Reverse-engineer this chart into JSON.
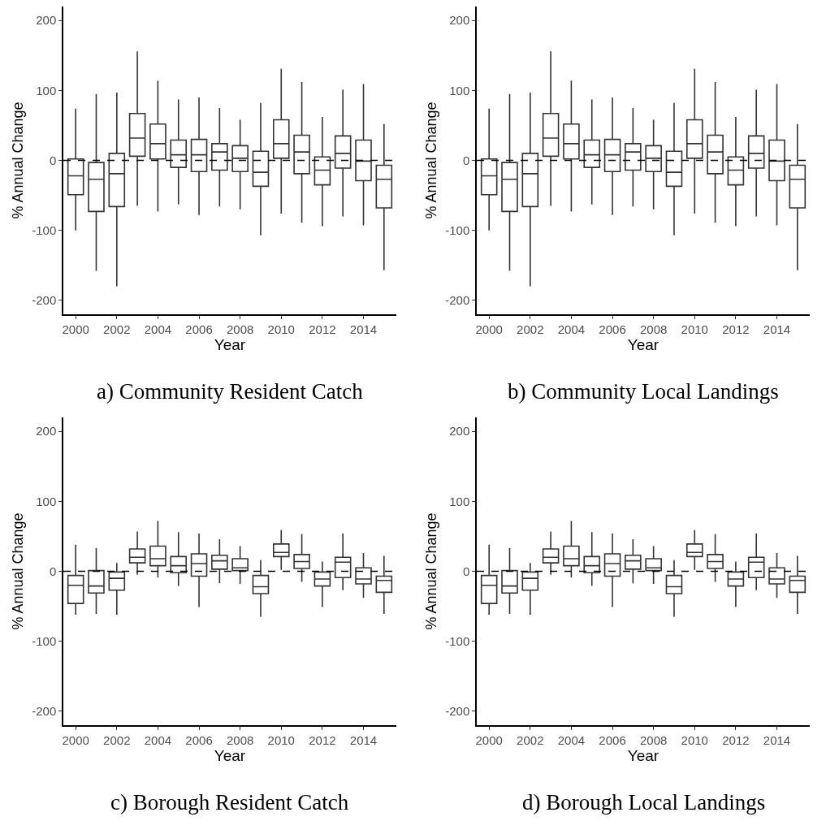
{
  "chart_data": [
    {
      "type": "box",
      "title": "a) Community Resident Catch",
      "xlabel": "Year",
      "ylabel": "% Annual Change",
      "color": "#333333",
      "x": [
        2000,
        2001,
        2002,
        2003,
        2004,
        2005,
        2006,
        2007,
        2008,
        2009,
        2010,
        2011,
        2012,
        2013,
        2014,
        2015
      ],
      "boxes": [
        {
          "low": -100,
          "q1": -49,
          "median": -22,
          "q3": 2,
          "high": 74
        },
        {
          "low": -158,
          "q1": -73,
          "median": -27,
          "q3": -3,
          "high": 95
        },
        {
          "low": -180,
          "q1": -66,
          "median": -19,
          "q3": 10,
          "high": 97
        },
        {
          "low": -65,
          "q1": 6,
          "median": 32,
          "q3": 67,
          "high": 156
        },
        {
          "low": -73,
          "q1": 2,
          "median": 24,
          "q3": 52,
          "high": 114
        },
        {
          "low": -63,
          "q1": -10,
          "median": 8,
          "q3": 29,
          "high": 87
        },
        {
          "low": -78,
          "q1": -16,
          "median": 8,
          "q3": 30,
          "high": 90
        },
        {
          "low": -66,
          "q1": -14,
          "median": 12,
          "q3": 24,
          "high": 75
        },
        {
          "low": -70,
          "q1": -16,
          "median": 3,
          "q3": 21,
          "high": 58
        },
        {
          "low": -107,
          "q1": -37,
          "median": -17,
          "q3": 13,
          "high": 82
        },
        {
          "low": -76,
          "q1": 3,
          "median": 24,
          "q3": 58,
          "high": 131
        },
        {
          "low": -89,
          "q1": -19,
          "median": 12,
          "q3": 36,
          "high": 112
        },
        {
          "low": -94,
          "q1": -35,
          "median": -14,
          "q3": 5,
          "high": 62
        },
        {
          "low": -80,
          "q1": -11,
          "median": 10,
          "q3": 35,
          "high": 101
        },
        {
          "low": -93,
          "q1": -29,
          "median": -1,
          "q3": 29,
          "high": 109
        },
        {
          "low": -157,
          "q1": -68,
          "median": -27,
          "q3": -7,
          "high": 52
        }
      ],
      "xlim": [
        1999.4,
        2015.6
      ],
      "xticks": [
        2000,
        2002,
        2004,
        2006,
        2008,
        2010,
        2012,
        2014
      ],
      "ylim": [
        -220,
        220
      ],
      "yticks": [
        -200,
        -100,
        0,
        100,
        200
      ],
      "ref_lines": [
        {
          "axis": "y",
          "value": 0,
          "line_style": "dashed",
          "color": "#000000"
        }
      ],
      "grid": false
    },
    {
      "type": "box",
      "title": "b) Community Local Landings",
      "xlabel": "Year",
      "ylabel": "% Annual Change",
      "color": "#333333",
      "x": [
        2000,
        2001,
        2002,
        2003,
        2004,
        2005,
        2006,
        2007,
        2008,
        2009,
        2010,
        2011,
        2012,
        2013,
        2014,
        2015
      ],
      "boxes": [
        {
          "low": -100,
          "q1": -49,
          "median": -22,
          "q3": 2,
          "high": 74
        },
        {
          "low": -158,
          "q1": -73,
          "median": -27,
          "q3": -3,
          "high": 95
        },
        {
          "low": -180,
          "q1": -66,
          "median": -19,
          "q3": 10,
          "high": 97
        },
        {
          "low": -65,
          "q1": 6,
          "median": 32,
          "q3": 67,
          "high": 156
        },
        {
          "low": -73,
          "q1": 2,
          "median": 24,
          "q3": 52,
          "high": 114
        },
        {
          "low": -63,
          "q1": -10,
          "median": 8,
          "q3": 29,
          "high": 87
        },
        {
          "low": -78,
          "q1": -16,
          "median": 8,
          "q3": 30,
          "high": 90
        },
        {
          "low": -66,
          "q1": -14,
          "median": 12,
          "q3": 24,
          "high": 75
        },
        {
          "low": -70,
          "q1": -16,
          "median": 3,
          "q3": 21,
          "high": 58
        },
        {
          "low": -107,
          "q1": -37,
          "median": -17,
          "q3": 13,
          "high": 82
        },
        {
          "low": -76,
          "q1": 3,
          "median": 24,
          "q3": 58,
          "high": 131
        },
        {
          "low": -89,
          "q1": -19,
          "median": 12,
          "q3": 36,
          "high": 112
        },
        {
          "low": -94,
          "q1": -35,
          "median": -14,
          "q3": 5,
          "high": 62
        },
        {
          "low": -80,
          "q1": -11,
          "median": 10,
          "q3": 35,
          "high": 101
        },
        {
          "low": -93,
          "q1": -29,
          "median": -1,
          "q3": 29,
          "high": 109
        },
        {
          "low": -157,
          "q1": -68,
          "median": -27,
          "q3": -7,
          "high": 52
        }
      ],
      "xlim": [
        1999.4,
        2015.6
      ],
      "xticks": [
        2000,
        2002,
        2004,
        2006,
        2008,
        2010,
        2012,
        2014
      ],
      "ylim": [
        -220,
        220
      ],
      "yticks": [
        -200,
        -100,
        0,
        100,
        200
      ],
      "ref_lines": [
        {
          "axis": "y",
          "value": 0,
          "line_style": "dashed",
          "color": "#000000"
        }
      ],
      "grid": false
    },
    {
      "type": "box",
      "title": "c) Borough Resident Catch",
      "xlabel": "Year",
      "ylabel": "% Annual Change",
      "color": "#333333",
      "x": [
        2000,
        2001,
        2002,
        2003,
        2004,
        2005,
        2006,
        2007,
        2008,
        2009,
        2010,
        2011,
        2012,
        2013,
        2014,
        2015
      ],
      "boxes": [
        {
          "low": -62,
          "q1": -46,
          "median": -20,
          "q3": -6,
          "high": 38
        },
        {
          "low": -61,
          "q1": -31,
          "median": -21,
          "q3": 1,
          "high": 33
        },
        {
          "low": -62,
          "q1": -27,
          "median": -10,
          "q3": -1,
          "high": 12
        },
        {
          "low": -5,
          "q1": 12,
          "median": 20,
          "q3": 32,
          "high": 57
        },
        {
          "low": -9,
          "q1": 8,
          "median": 18,
          "q3": 36,
          "high": 72
        },
        {
          "low": -21,
          "q1": -2,
          "median": 8,
          "q3": 21,
          "high": 56
        },
        {
          "low": -51,
          "q1": -7,
          "median": 11,
          "q3": 25,
          "high": 54
        },
        {
          "low": -17,
          "q1": 3,
          "median": 15,
          "q3": 23,
          "high": 46
        },
        {
          "low": -18,
          "q1": 1,
          "median": 5,
          "q3": 18,
          "high": 36
        },
        {
          "low": -65,
          "q1": -32,
          "median": -22,
          "q3": -6,
          "high": 16
        },
        {
          "low": 2,
          "q1": 21,
          "median": 27,
          "q3": 39,
          "high": 59
        },
        {
          "low": -15,
          "q1": 4,
          "median": 14,
          "q3": 24,
          "high": 53
        },
        {
          "low": -51,
          "q1": -21,
          "median": -11,
          "q3": -1,
          "high": 14
        },
        {
          "low": -27,
          "q1": -9,
          "median": 13,
          "q3": 20,
          "high": 54
        },
        {
          "low": -38,
          "q1": -18,
          "median": -11,
          "q3": 5,
          "high": 26
        },
        {
          "low": -61,
          "q1": -30,
          "median": -13,
          "q3": -7,
          "high": 22
        }
      ],
      "xlim": [
        1999.4,
        2015.6
      ],
      "xticks": [
        2000,
        2002,
        2004,
        2006,
        2008,
        2010,
        2012,
        2014
      ],
      "ylim": [
        -220,
        220
      ],
      "yticks": [
        -200,
        -100,
        0,
        100,
        200
      ],
      "ref_lines": [
        {
          "axis": "y",
          "value": 0,
          "line_style": "dashed",
          "color": "#000000"
        }
      ],
      "grid": false
    },
    {
      "type": "box",
      "title": "d) Borough Local Landings",
      "xlabel": "Year",
      "ylabel": "% Annual Change",
      "color": "#333333",
      "x": [
        2000,
        2001,
        2002,
        2003,
        2004,
        2005,
        2006,
        2007,
        2008,
        2009,
        2010,
        2011,
        2012,
        2013,
        2014,
        2015
      ],
      "boxes": [
        {
          "low": -62,
          "q1": -46,
          "median": -20,
          "q3": -6,
          "high": 38
        },
        {
          "low": -61,
          "q1": -31,
          "median": -21,
          "q3": 1,
          "high": 33
        },
        {
          "low": -62,
          "q1": -27,
          "median": -10,
          "q3": -1,
          "high": 12
        },
        {
          "low": -5,
          "q1": 12,
          "median": 20,
          "q3": 32,
          "high": 57
        },
        {
          "low": -9,
          "q1": 8,
          "median": 18,
          "q3": 36,
          "high": 72
        },
        {
          "low": -21,
          "q1": -2,
          "median": 8,
          "q3": 21,
          "high": 56
        },
        {
          "low": -51,
          "q1": -7,
          "median": 11,
          "q3": 25,
          "high": 54
        },
        {
          "low": -17,
          "q1": 3,
          "median": 15,
          "q3": 23,
          "high": 46
        },
        {
          "low": -18,
          "q1": 1,
          "median": 5,
          "q3": 18,
          "high": 36
        },
        {
          "low": -65,
          "q1": -32,
          "median": -22,
          "q3": -6,
          "high": 16
        },
        {
          "low": 2,
          "q1": 21,
          "median": 27,
          "q3": 39,
          "high": 59
        },
        {
          "low": -15,
          "q1": 4,
          "median": 14,
          "q3": 24,
          "high": 53
        },
        {
          "low": -51,
          "q1": -21,
          "median": -11,
          "q3": -1,
          "high": 14
        },
        {
          "low": -27,
          "q1": -9,
          "median": 13,
          "q3": 20,
          "high": 54
        },
        {
          "low": -38,
          "q1": -18,
          "median": -11,
          "q3": 5,
          "high": 26
        },
        {
          "low": -61,
          "q1": -30,
          "median": -13,
          "q3": -7,
          "high": 22
        }
      ],
      "xlim": [
        1999.4,
        2015.6
      ],
      "xticks": [
        2000,
        2002,
        2004,
        2006,
        2008,
        2010,
        2012,
        2014
      ],
      "ylim": [
        -220,
        220
      ],
      "yticks": [
        -200,
        -100,
        0,
        100,
        200
      ],
      "ref_lines": [
        {
          "axis": "y",
          "value": 0,
          "line_style": "dashed",
          "color": "#000000"
        }
      ],
      "grid": false
    }
  ]
}
